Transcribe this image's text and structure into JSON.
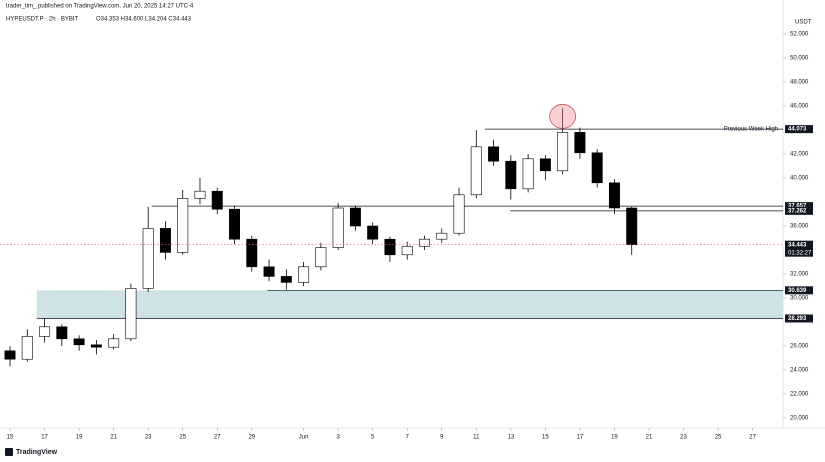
{
  "chart_data": {
    "type": "candlestick",
    "publisher": "trader_tim_ published on TradingView.com, Jun 20, 2025 14:27 UTC-4",
    "symbol_line": "HYPEUSDT.P · 2h · BYBIT",
    "ohlc_line": "O34.353 H34.600 L34.204 C34.443",
    "currency": "USDT",
    "brand": "TradingView",
    "x": [
      0,
      1,
      2,
      3,
      4,
      5,
      6,
      7,
      8,
      9,
      10,
      11,
      12,
      13,
      14,
      15,
      16,
      17,
      18,
      19,
      20,
      21,
      22,
      23,
      24,
      25,
      26,
      27,
      28,
      29,
      30,
      31,
      32,
      33,
      34,
      35,
      36
    ],
    "open": [
      25.6,
      24.9,
      26.8,
      27.6,
      26.6,
      26.1,
      25.9,
      26.6,
      30.8,
      35.8,
      33.8,
      38.3,
      38.9,
      37.4,
      34.9,
      32.6,
      31.8,
      31.3,
      32.6,
      34.2,
      37.5,
      36.0,
      34.9,
      33.6,
      34.3,
      34.9,
      35.4,
      38.6,
      42.6,
      41.4,
      39.1,
      41.6,
      40.6,
      43.8,
      42.1,
      39.6,
      37.5
    ],
    "high": [
      26.0,
      27.4,
      28.3,
      27.8,
      26.9,
      26.5,
      27.0,
      31.2,
      37.6,
      36.4,
      39.0,
      40.0,
      39.2,
      37.7,
      35.2,
      33.2,
      32.4,
      33.0,
      34.6,
      37.9,
      37.7,
      36.3,
      35.1,
      34.7,
      35.2,
      35.8,
      39.2,
      44.0,
      43.2,
      41.9,
      42.0,
      41.9,
      45.8,
      44.2,
      42.4,
      39.9,
      37.6
    ],
    "low": [
      24.3,
      24.7,
      26.3,
      26.0,
      25.6,
      25.3,
      25.7,
      26.4,
      30.5,
      33.2,
      33.6,
      37.8,
      37.0,
      34.5,
      32.2,
      31.4,
      30.7,
      31.0,
      32.3,
      34.0,
      35.6,
      34.5,
      33.0,
      33.2,
      34.0,
      34.6,
      35.2,
      38.3,
      41.0,
      38.2,
      38.8,
      39.8,
      40.3,
      41.6,
      39.2,
      37.0,
      33.6
    ],
    "close": [
      24.9,
      26.8,
      27.6,
      26.6,
      26.1,
      25.9,
      26.6,
      30.8,
      35.8,
      33.8,
      38.3,
      38.9,
      37.4,
      34.9,
      32.6,
      31.8,
      31.3,
      32.6,
      34.2,
      37.5,
      36.0,
      34.9,
      33.6,
      34.3,
      34.9,
      35.4,
      38.6,
      42.6,
      41.4,
      39.1,
      41.6,
      40.6,
      43.8,
      42.1,
      39.6,
      37.5,
      34.443
    ],
    "xlim": [
      -0.58,
      44.76
    ],
    "xticks": [
      {
        "value": 0,
        "label": "15"
      },
      {
        "value": 2,
        "label": "17"
      },
      {
        "value": 4,
        "label": "19"
      },
      {
        "value": 6,
        "label": "21"
      },
      {
        "value": 8,
        "label": "23"
      },
      {
        "value": 10,
        "label": "25"
      },
      {
        "value": 12,
        "label": "27"
      },
      {
        "value": 14,
        "label": "29"
      },
      {
        "value": 17,
        "label": "Jun"
      },
      {
        "value": 19,
        "label": "3"
      },
      {
        "value": 21,
        "label": "5"
      },
      {
        "value": 23,
        "label": "7"
      },
      {
        "value": 25,
        "label": "9"
      },
      {
        "value": 27,
        "label": "11"
      },
      {
        "value": 29,
        "label": "13"
      },
      {
        "value": 31,
        "label": "15"
      },
      {
        "value": 33,
        "label": "17"
      },
      {
        "value": 35,
        "label": "19"
      },
      {
        "value": 37,
        "label": "21"
      },
      {
        "value": 39,
        "label": "23"
      },
      {
        "value": 41,
        "label": "25"
      },
      {
        "value": 43,
        "label": "27"
      }
    ],
    "ylim": [
      19.167,
      54.833
    ],
    "yticks": [
      {
        "value": 52,
        "label": "52.000"
      },
      {
        "value": 50,
        "label": "50.000"
      },
      {
        "value": 48,
        "label": "48.000"
      },
      {
        "value": 46,
        "label": "46.000"
      },
      {
        "value": 42,
        "label": "42.000"
      },
      {
        "value": 40,
        "label": "40.000"
      },
      {
        "value": 36,
        "label": "36.000"
      },
      {
        "value": 32,
        "label": "32.000"
      },
      {
        "value": 30,
        "label": "30.000"
      },
      {
        "value": 26,
        "label": "26.000"
      },
      {
        "value": 24,
        "label": "24.000"
      },
      {
        "value": 22,
        "label": "22.000"
      },
      {
        "value": 20,
        "label": "20.000"
      }
    ],
    "zone": {
      "from": 28.293,
      "to": 30.639,
      "start": 1.55,
      "color": "#cfe3e6"
    },
    "levels": [
      {
        "value": 44.073,
        "start": 27.5,
        "text": "Previous Week High"
      },
      {
        "value": 37.657,
        "start": 8.2
      },
      {
        "value": 37.262,
        "start": 28.95
      },
      {
        "value": 30.639,
        "start": 14.9
      },
      {
        "value": 28.293,
        "start": 1.55
      }
    ],
    "last_price": {
      "value": 34.443,
      "countdown": "01:32:27",
      "color": "#e0605a"
    },
    "up_color": "#ffffff",
    "down_color": "#000000"
  }
}
